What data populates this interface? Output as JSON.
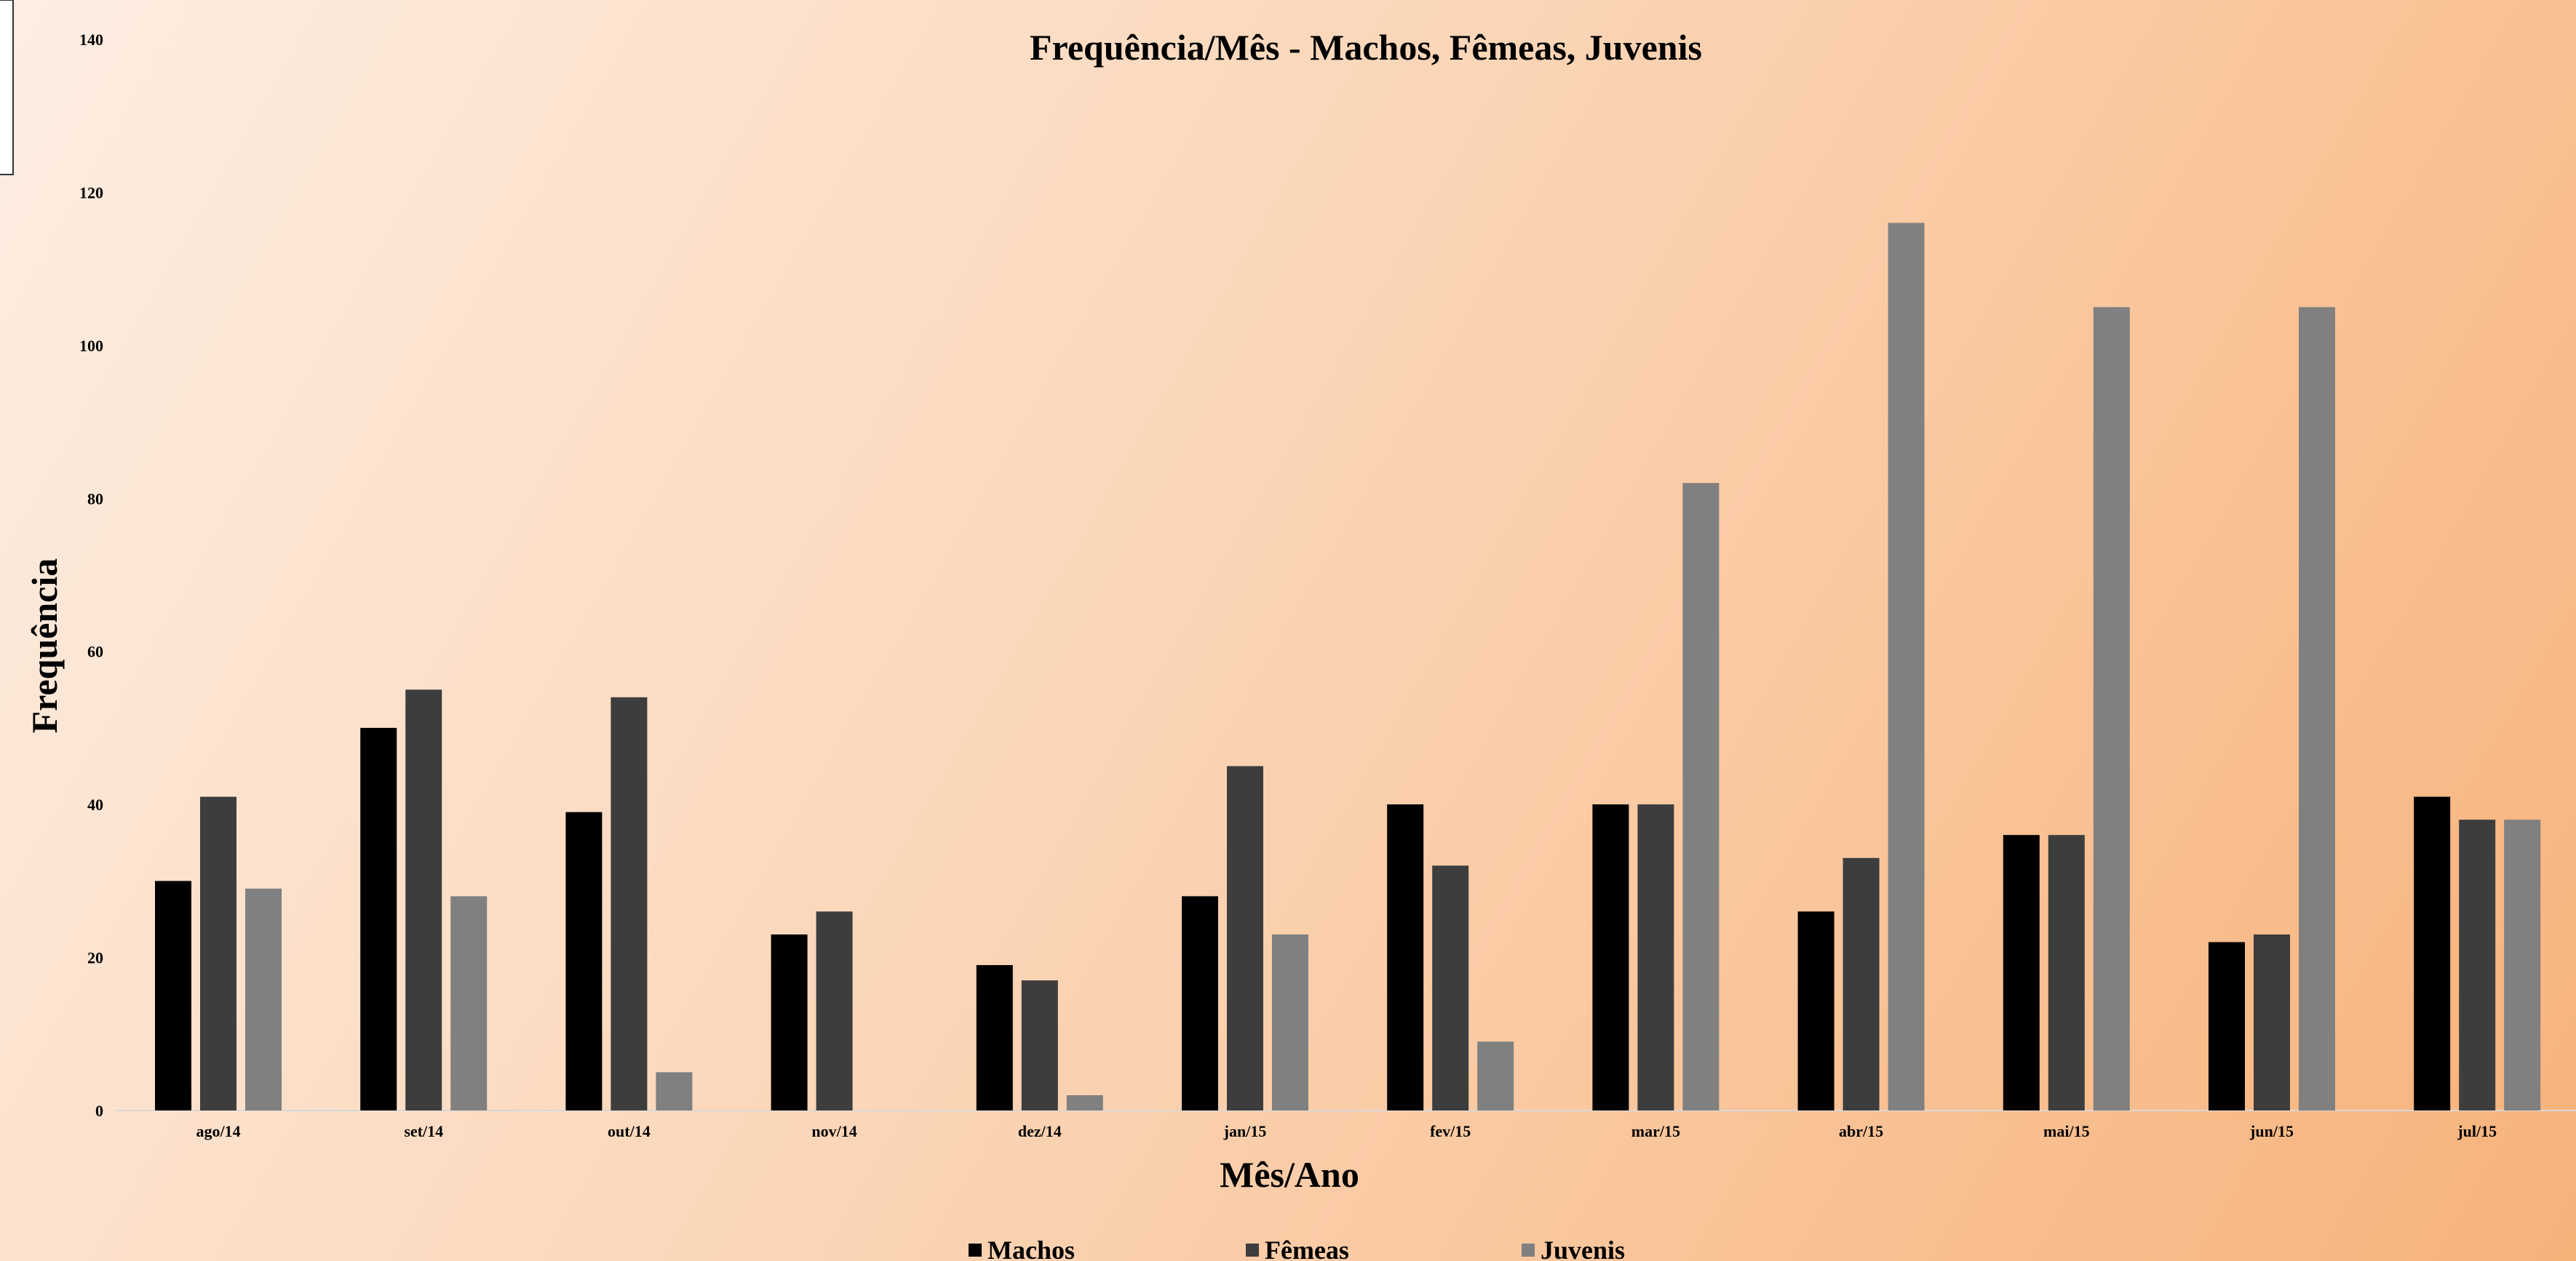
{
  "chart_data": {
    "type": "bar",
    "title": "Frequência/Mês - Machos, Fêmeas, Juvenis",
    "xlabel": "Mês/Ano",
    "ylabel": "Frequência",
    "ylim": [
      0,
      140
    ],
    "yticks": [
      0,
      20,
      40,
      60,
      80,
      100,
      120,
      140
    ],
    "categories": [
      "ago/14",
      "set/14",
      "out/14",
      "nov/14",
      "dez/14",
      "jan/15",
      "fev/15",
      "mar/15",
      "abr/15",
      "mai/15",
      "jun/15",
      "jul/15"
    ],
    "series": [
      {
        "name": "Machos",
        "color": "#000000",
        "values": [
          30,
          50,
          39,
          23,
          19,
          28,
          40,
          40,
          26,
          36,
          22,
          41
        ]
      },
      {
        "name": "Fêmeas",
        "color": "#3d3d3d",
        "values": [
          41,
          55,
          54,
          26,
          17,
          45,
          32,
          40,
          33,
          36,
          23,
          38
        ]
      },
      {
        "name": "Juvenis",
        "color": "#808080",
        "values": [
          29,
          28,
          5,
          0,
          2,
          23,
          9,
          82,
          116,
          105,
          105,
          38
        ]
      }
    ],
    "grid": false,
    "legend_position": "bottom"
  }
}
